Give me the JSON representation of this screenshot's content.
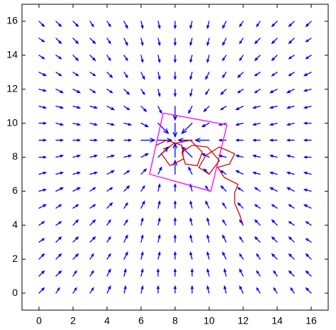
{
  "chart_data": {
    "type": "quiver",
    "xlim": [
      -1,
      17
    ],
    "ylim": [
      -1,
      17
    ],
    "xticks": [
      0,
      2,
      4,
      6,
      8,
      10,
      12,
      14,
      16
    ],
    "yticks": [
      0,
      2,
      4,
      6,
      8,
      10,
      12,
      14,
      16
    ],
    "color": "#0000ff",
    "x": [
      0,
      1,
      2,
      3,
      4,
      5,
      6,
      7,
      8,
      9,
      10,
      11,
      12,
      13,
      14,
      15,
      16
    ],
    "y": [
      0,
      1,
      2,
      3,
      4,
      5,
      6,
      7,
      8,
      9,
      10,
      11,
      12,
      13,
      14,
      15,
      16
    ],
    "u": [
      [
        0.3,
        0.2,
        0.2,
        0.2,
        0.2,
        0.1,
        0.1,
        0,
        0,
        0,
        -0.1,
        -0.1,
        -0.2,
        -0.2,
        -0.2,
        -0.2,
        -0.3
      ],
      [
        0.3,
        0.3,
        0.2,
        0.2,
        0.2,
        0.1,
        0.1,
        0,
        0,
        0,
        -0.1,
        -0.1,
        -0.2,
        -0.2,
        -0.2,
        -0.3,
        -0.3
      ],
      [
        0.3,
        0.3,
        0.3,
        0.2,
        0.2,
        0.2,
        0.1,
        0.1,
        0,
        -0.1,
        -0.1,
        -0.2,
        -0.2,
        -0.2,
        -0.3,
        -0.3,
        -0.3
      ],
      [
        0.3,
        0.3,
        0.3,
        0.3,
        0.2,
        0.2,
        0.1,
        0.1,
        0,
        -0.1,
        -0.1,
        -0.2,
        -0.2,
        -0.3,
        -0.3,
        -0.3,
        -0.3
      ],
      [
        0.3,
        0.3,
        0.3,
        0.3,
        0.2,
        0.2,
        0.1,
        0.1,
        0,
        -0.1,
        -0.1,
        -0.2,
        -0.2,
        -0.3,
        -0.3,
        -0.3,
        -0.3
      ],
      [
        0.4,
        0.3,
        0.3,
        0.3,
        0.3,
        0.2,
        0.2,
        0.1,
        0,
        -0.1,
        -0.2,
        -0.2,
        -0.3,
        -0.3,
        -0.3,
        -0.3,
        -0.4
      ],
      [
        0.4,
        0.4,
        0.4,
        0.3,
        0.3,
        0.3,
        0.2,
        0.1,
        0,
        -0.1,
        -0.2,
        -0.3,
        -0.3,
        -0.3,
        -0.4,
        -0.4,
        -0.4
      ],
      [
        0.4,
        0.4,
        0.4,
        0.4,
        0.4,
        0.3,
        0.3,
        0.2,
        0,
        -0.2,
        -0.3,
        -0.3,
        -0.4,
        -0.4,
        -0.4,
        -0.4,
        -0.4
      ],
      [
        0.4,
        0.4,
        0.4,
        0.4,
        0.4,
        0.4,
        0.4,
        0.6,
        0,
        -0.6,
        -0.4,
        -0.4,
        -0.4,
        -0.4,
        -0.4,
        -0.4,
        -0.4
      ],
      [
        0.4,
        0.4,
        0.4,
        0.4,
        0.4,
        0.4,
        0.8,
        0.8,
        0,
        -0.8,
        -0.8,
        -0.4,
        -0.4,
        -0.4,
        -0.4,
        -0.4,
        -0.4
      ],
      [
        0.4,
        0.4,
        0.4,
        0.4,
        0.4,
        0.4,
        0.4,
        0.6,
        0,
        -0.6,
        -0.4,
        -0.4,
        -0.4,
        -0.4,
        -0.4,
        -0.4,
        -0.4
      ],
      [
        0.4,
        0.4,
        0.4,
        0.4,
        0.4,
        0.3,
        0.3,
        0.2,
        0,
        -0.2,
        -0.3,
        -0.3,
        -0.4,
        -0.4,
        -0.4,
        -0.4,
        -0.4
      ],
      [
        0.4,
        0.4,
        0.4,
        0.3,
        0.3,
        0.3,
        0.2,
        0.1,
        0,
        -0.1,
        -0.2,
        -0.3,
        -0.3,
        -0.3,
        -0.4,
        -0.4,
        -0.4
      ],
      [
        0.4,
        0.3,
        0.3,
        0.3,
        0.3,
        0.2,
        0.2,
        0.1,
        0,
        -0.1,
        -0.2,
        -0.2,
        -0.3,
        -0.3,
        -0.3,
        -0.3,
        -0.4
      ],
      [
        0.3,
        0.3,
        0.3,
        0.3,
        0.2,
        0.2,
        0.1,
        0.1,
        0,
        -0.1,
        -0.1,
        -0.2,
        -0.2,
        -0.3,
        -0.3,
        -0.3,
        -0.3
      ],
      [
        0.3,
        0.3,
        0.3,
        0.3,
        0.2,
        0.2,
        0.1,
        0.1,
        0,
        -0.1,
        -0.1,
        -0.2,
        -0.2,
        -0.3,
        -0.3,
        -0.3,
        -0.3
      ],
      [
        0.3,
        0.3,
        0.3,
        0.2,
        0.2,
        0.2,
        0.1,
        0.1,
        0,
        -0.1,
        -0.1,
        -0.2,
        -0.2,
        -0.2,
        -0.3,
        -0.3,
        -0.3
      ]
    ],
    "v": [
      [
        0.3,
        0.3,
        0.3,
        0.3,
        0.4,
        0.4,
        0.4,
        0.4,
        0.4,
        0.4,
        0.4,
        0.4,
        0.4,
        0.3,
        0.3,
        0.3,
        0.3
      ],
      [
        0.3,
        0.3,
        0.3,
        0.3,
        0.4,
        0.4,
        0.4,
        0.4,
        0.4,
        0.4,
        0.4,
        0.4,
        0.4,
        0.3,
        0.3,
        0.3,
        0.3
      ],
      [
        0.3,
        0.3,
        0.3,
        0.3,
        0.3,
        0.4,
        0.4,
        0.4,
        0.4,
        0.4,
        0.4,
        0.4,
        0.3,
        0.3,
        0.3,
        0.3,
        0.3
      ],
      [
        0.2,
        0.3,
        0.3,
        0.3,
        0.3,
        0.4,
        0.4,
        0.4,
        0.4,
        0.4,
        0.4,
        0.4,
        0.3,
        0.3,
        0.3,
        0.3,
        0.2
      ],
      [
        0.2,
        0.2,
        0.3,
        0.3,
        0.3,
        0.3,
        0.4,
        0.4,
        0.4,
        0.4,
        0.4,
        0.3,
        0.3,
        0.3,
        0.3,
        0.2,
        0.2
      ],
      [
        0.2,
        0.2,
        0.2,
        0.2,
        0.3,
        0.3,
        0.4,
        0.4,
        0.4,
        0.4,
        0.4,
        0.3,
        0.3,
        0.2,
        0.2,
        0.2,
        0.2
      ],
      [
        0.1,
        0.2,
        0.2,
        0.2,
        0.2,
        0.3,
        0.3,
        0.4,
        0.4,
        0.4,
        0.3,
        0.3,
        0.2,
        0.2,
        0.2,
        0.2,
        0.1
      ],
      [
        0.1,
        0.1,
        0.1,
        0.1,
        0.2,
        0.2,
        0.3,
        0.4,
        0.8,
        0.4,
        0.3,
        0.2,
        0.2,
        0.1,
        0.1,
        0.1,
        0.1
      ],
      [
        0,
        0.1,
        0.1,
        0.1,
        0.1,
        0.1,
        0.2,
        0.6,
        0.8,
        0.6,
        0.2,
        0.1,
        0.1,
        0.1,
        0.1,
        0.1,
        0
      ],
      [
        0,
        0,
        0,
        0,
        0,
        0,
        0,
        0,
        0,
        0,
        0,
        0,
        0,
        0,
        0,
        0,
        0
      ],
      [
        0,
        -0.1,
        -0.1,
        -0.1,
        -0.1,
        -0.1,
        -0.2,
        -0.6,
        -0.8,
        -0.6,
        -0.2,
        -0.1,
        -0.1,
        -0.1,
        -0.1,
        -0.1,
        0
      ],
      [
        -0.1,
        -0.1,
        -0.1,
        -0.1,
        -0.2,
        -0.2,
        -0.3,
        -0.4,
        -0.8,
        -0.4,
        -0.3,
        -0.2,
        -0.2,
        -0.1,
        -0.1,
        -0.1,
        -0.1
      ],
      [
        -0.1,
        -0.2,
        -0.2,
        -0.2,
        -0.2,
        -0.3,
        -0.3,
        -0.4,
        -0.4,
        -0.4,
        -0.3,
        -0.3,
        -0.2,
        -0.2,
        -0.2,
        -0.2,
        -0.1
      ],
      [
        -0.2,
        -0.2,
        -0.2,
        -0.2,
        -0.3,
        -0.3,
        -0.4,
        -0.4,
        -0.4,
        -0.4,
        -0.4,
        -0.3,
        -0.3,
        -0.2,
        -0.2,
        -0.2,
        -0.2
      ],
      [
        -0.2,
        -0.2,
        -0.3,
        -0.3,
        -0.3,
        -0.3,
        -0.4,
        -0.4,
        -0.4,
        -0.4,
        -0.4,
        -0.3,
        -0.3,
        -0.3,
        -0.3,
        -0.2,
        -0.2
      ],
      [
        -0.2,
        -0.3,
        -0.3,
        -0.3,
        -0.3,
        -0.4,
        -0.4,
        -0.4,
        -0.4,
        -0.4,
        -0.4,
        -0.4,
        -0.3,
        -0.3,
        -0.3,
        -0.3,
        -0.2
      ],
      [
        -0.3,
        -0.3,
        -0.3,
        -0.3,
        -0.3,
        -0.4,
        -0.4,
        -0.4,
        -0.4,
        -0.4,
        -0.4,
        -0.4,
        -0.3,
        -0.3,
        -0.3,
        -0.3,
        -0.3
      ]
    ],
    "lines": [
      {
        "color": "#ff00ff",
        "x": [
          7.3,
          11.05,
          10.1,
          6.5,
          7.3
        ],
        "y": [
          10.6,
          9.9,
          6.0,
          7.0,
          10.6
        ]
      },
      {
        "color": "#dd0000",
        "x": [
          12,
          11.8,
          11.5,
          11.5,
          11.7,
          10.9,
          10.5,
          11.2,
          11.5,
          10.6,
          9.8,
          9.4,
          10.0,
          10.6,
          9.9,
          9.0,
          8.4,
          8.6,
          9.3,
          9.6,
          8.9,
          7.9,
          7.2,
          7.7,
          8.5,
          8.4,
          7.5,
          6.9
        ],
        "y": [
          4,
          4.6,
          5.3,
          5.9,
          6.4,
          6.8,
          7.4,
          7.6,
          8.2,
          8.6,
          8.1,
          7.4,
          7.0,
          7.8,
          8.6,
          8.7,
          8.3,
          7.6,
          7.5,
          8.3,
          9.0,
          8.8,
          8.2,
          7.5,
          7.9,
          8.7,
          9.0,
          8.7
        ]
      }
    ]
  }
}
